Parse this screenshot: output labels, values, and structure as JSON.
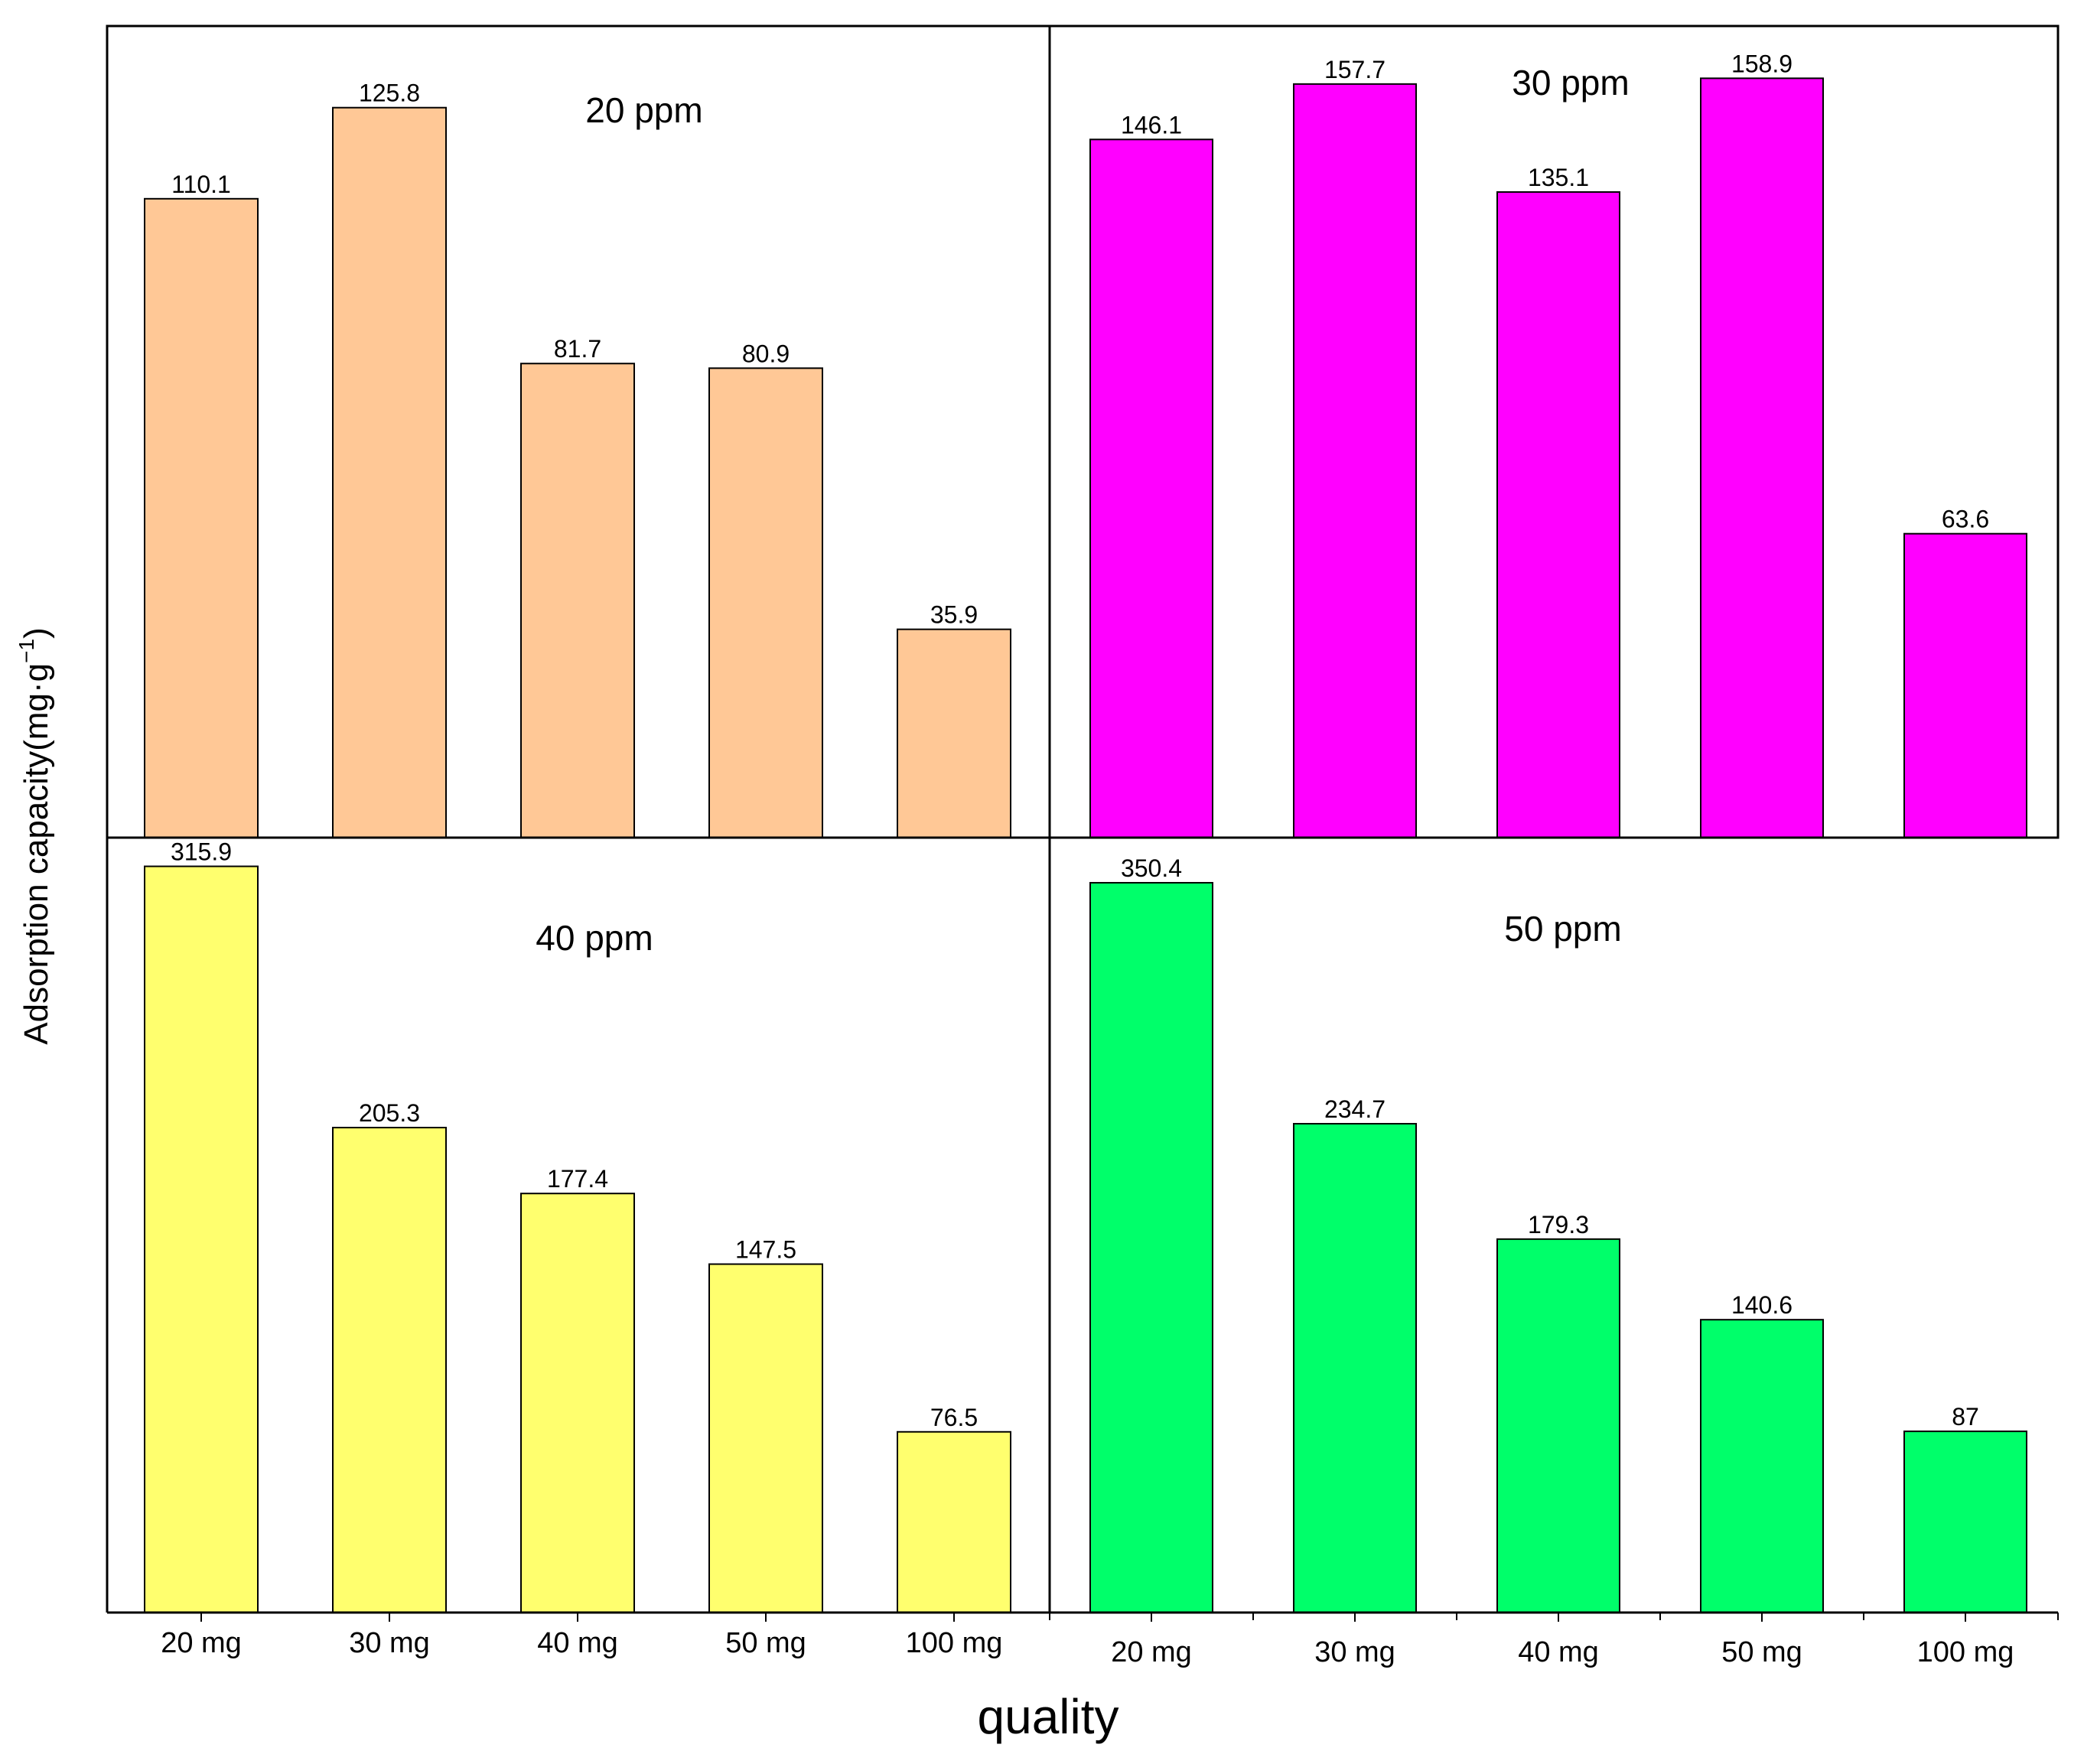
{
  "figure": {
    "ylabel": "Adsorption capacity(mg·g",
    "ylabel_sup": "−1",
    "ylabel_close": ")",
    "xlabel": "quality"
  },
  "chart_data": [
    {
      "type": "bar",
      "title": "20 ppm",
      "categories": [
        "20 mg",
        "30 mg",
        "40 mg",
        "50 mg",
        "100 mg"
      ],
      "values": [
        110.1,
        125.8,
        81.7,
        80.9,
        35.9
      ],
      "labels": [
        "110.1",
        "125.8",
        "81.7",
        "80.9",
        "35.9"
      ],
      "color": "#FFC896",
      "ylim": [
        0,
        140
      ]
    },
    {
      "type": "bar",
      "title": "30 ppm",
      "categories": [
        "20 mg",
        "30 mg",
        "40 mg",
        "50 mg",
        "100 mg"
      ],
      "values": [
        146.1,
        157.7,
        135.1,
        158.9,
        63.6
      ],
      "labels": [
        "146.1",
        "157.7",
        "135.1",
        "158.9",
        "63.6"
      ],
      "color": "#FF00FF",
      "ylim": [
        0,
        170
      ]
    },
    {
      "type": "bar",
      "title": "40 ppm",
      "categories": [
        "20 mg",
        "30 mg",
        "40 mg",
        "50 mg",
        "100 mg"
      ],
      "values": [
        315.9,
        205.3,
        177.4,
        147.5,
        76.5
      ],
      "labels": [
        "315.9",
        "205.3",
        "177.4",
        "147.5",
        "76.5"
      ],
      "color": "#FFFF6E",
      "ylim": [
        0,
        330
      ]
    },
    {
      "type": "bar",
      "title": "50 ppm",
      "categories": [
        "20 mg",
        "30 mg",
        "40 mg",
        "50 mg",
        "100 mg"
      ],
      "values": [
        350.4,
        234.7,
        179.3,
        140.6,
        87
      ],
      "labels": [
        "350.4",
        "234.7",
        "179.3",
        "140.6",
        "87"
      ],
      "color": "#00FF6A",
      "ylim": [
        0,
        375
      ]
    }
  ]
}
